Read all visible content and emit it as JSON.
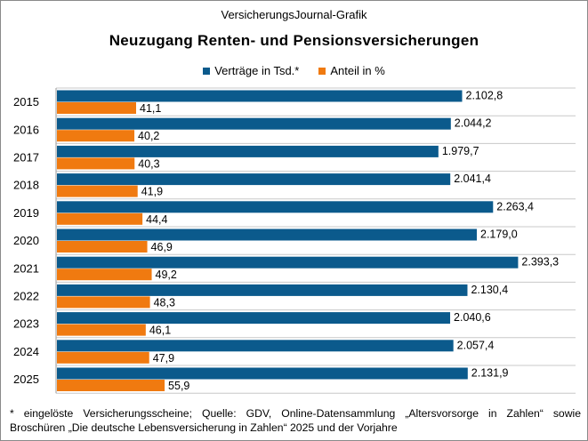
{
  "header": {
    "source_label": "VersicherungsJournal-Grafik",
    "title": "Neuzugang Renten- und Pensionsversicherungen"
  },
  "footnote": {
    "line1": "* eingelöste Versicherungsscheine; Quelle: GDV, Online-Datensammlung „Altersvorsorge in Zahlen“ sowie",
    "line2": "Broschüren „Die deutsche Lebensversicherung in Zahlen“ 2025 und der Vorjahre"
  },
  "chart_data": {
    "type": "bar",
    "orientation": "horizontal",
    "title": "Neuzugang Renten- und Pensionsversicherungen",
    "categories": [
      "2015",
      "2016",
      "2017",
      "2018",
      "2019",
      "2020",
      "2021",
      "2022",
      "2023",
      "2024",
      "2025"
    ],
    "series": [
      {
        "name": "Verträge in Tsd.*",
        "color": "#0b5a8c",
        "values": [
          2102.8,
          2044.2,
          1979.7,
          2041.4,
          2263.4,
          2179.0,
          2393.3,
          2130.4,
          2040.6,
          2057.4,
          2131.9
        ],
        "labels": [
          "2.102,8",
          "2.044,2",
          "1.979,7",
          "2.041,4",
          "2.263,4",
          "2.179,0",
          "2.393,3",
          "2.130,4",
          "2.040,6",
          "2.057,4",
          "2.131,9"
        ]
      },
      {
        "name": "Anteil in %",
        "color": "#f07a10",
        "values": [
          41.1,
          40.2,
          40.3,
          41.9,
          44.4,
          46.9,
          49.2,
          48.3,
          46.1,
          47.9,
          55.9
        ],
        "labels": [
          "41,1",
          "40,2",
          "40,3",
          "41,9",
          "44,4",
          "46,9",
          "49,2",
          "48,3",
          "46,1",
          "47,9",
          "55,9"
        ]
      }
    ],
    "legend_position": "top-center",
    "grid": "horizontal-separators"
  }
}
